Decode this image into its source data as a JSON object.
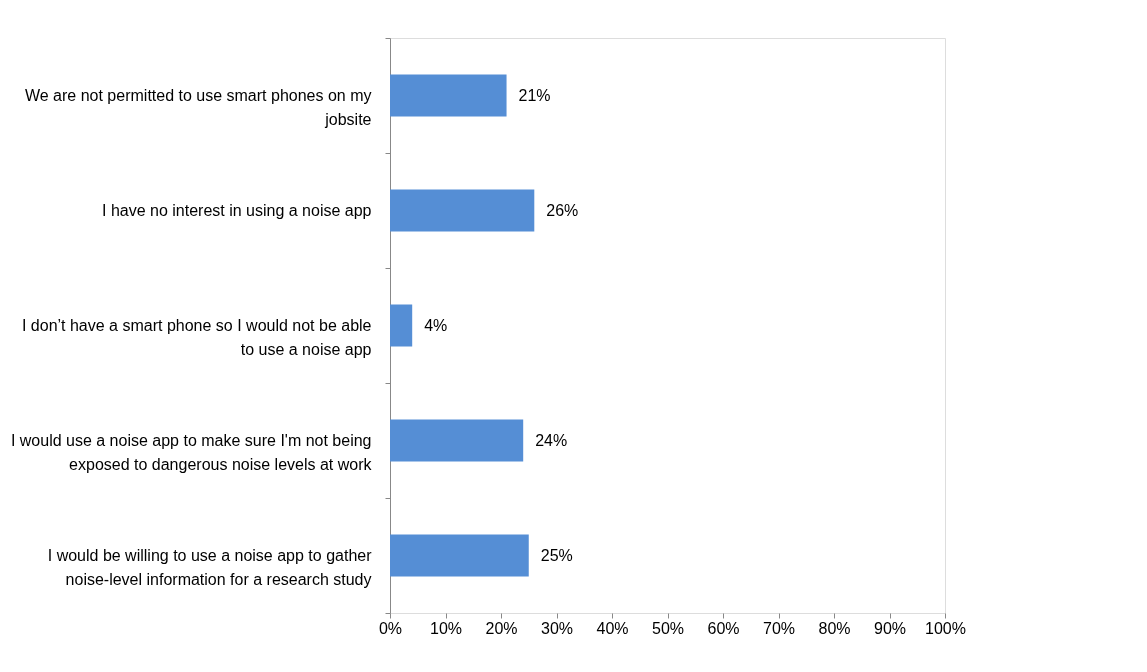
{
  "chart_data": {
    "type": "bar",
    "orientation": "horizontal",
    "categories": [
      "We are not permitted to use smart phones on my jobsite",
      "I have no interest in using a noise app",
      "I don’t have a smart phone so I would not be able to use a noise app",
      "I would use a noise app to make sure I'm not being exposed to dangerous noise levels at work",
      "I would be willing to use a noise app to gather noise-level information for a research study"
    ],
    "values": [
      21,
      26,
      4,
      24,
      25
    ],
    "value_labels": [
      "21%",
      "26%",
      "4%",
      "24%",
      "25%"
    ],
    "color": "#558ed5",
    "xlim": [
      0,
      100
    ],
    "xticks": [
      {
        "value": 0,
        "label": "0%"
      },
      {
        "value": 10,
        "label": "10%"
      },
      {
        "value": 20,
        "label": "20%"
      },
      {
        "value": 30,
        "label": "30%"
      },
      {
        "value": 40,
        "label": "40%"
      },
      {
        "value": 50,
        "label": "50%"
      },
      {
        "value": 60,
        "label": "60%"
      },
      {
        "value": 70,
        "label": "70%"
      },
      {
        "value": 80,
        "label": "80%"
      },
      {
        "value": 90,
        "label": "90%"
      },
      {
        "value": 100,
        "label": "100%"
      }
    ],
    "grid": false
  }
}
